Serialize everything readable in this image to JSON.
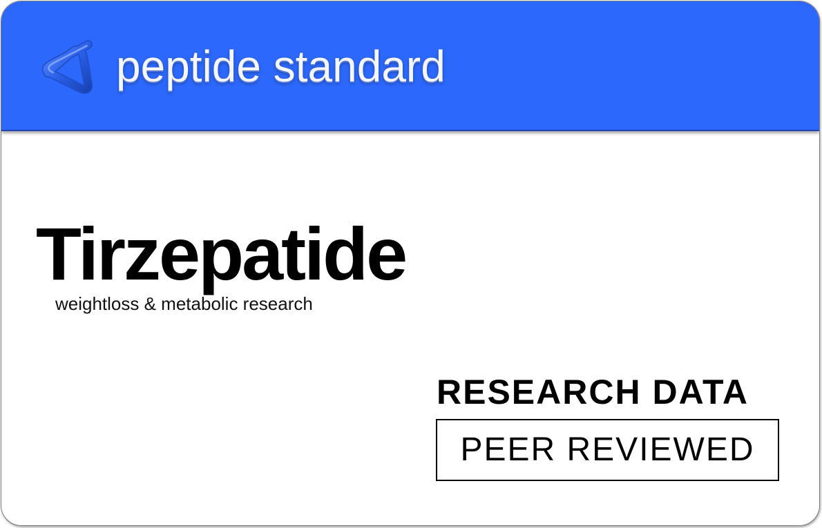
{
  "brand": {
    "name": "peptide standard",
    "logo_icon": "triangular-knot-logo-icon",
    "header_color": "#2c68fb"
  },
  "product": {
    "title": "Tirzepatide",
    "subtitle": "weightloss & metabolic research"
  },
  "badges": {
    "research_label": "RESEARCH DATA",
    "peer_label": "PEER REVIEWED"
  }
}
